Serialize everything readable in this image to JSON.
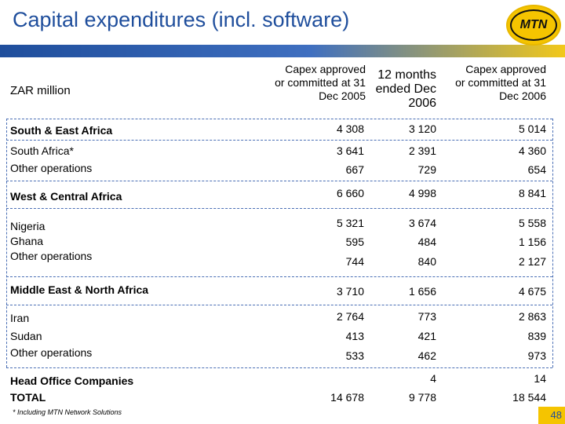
{
  "header": {
    "title": "Capital expenditures (incl. software)",
    "logo_text": "MTN"
  },
  "colors": {
    "title_blue": "#1f4e9c",
    "brand_yellow": "#f5c400",
    "dash_blue": "#4a6fb5"
  },
  "table": {
    "unit_label": "ZAR million",
    "columns": [
      "Capex approved or committed at 31 Dec 2005",
      "12 months ended Dec 2006",
      "Capex approved or committed at 31 Dec 2006"
    ],
    "rows": [
      {
        "label": "South & East Africa",
        "bold": true,
        "values": [
          "4 308",
          "3 120",
          "5 014"
        ]
      },
      {
        "label": "South Africa*",
        "bold": false,
        "values": [
          "3 641",
          "2 391",
          "4 360"
        ]
      },
      {
        "label": "Other operations",
        "bold": false,
        "values": [
          "667",
          "729",
          "654"
        ]
      },
      {
        "label": "West & Central Africa",
        "bold": true,
        "values": [
          "6 660",
          "4 998",
          "8 841"
        ]
      },
      {
        "label": "Nigeria",
        "bold": false,
        "values": [
          "5 321",
          "3 674",
          "5 558"
        ]
      },
      {
        "label": "Ghana",
        "bold": false,
        "values": [
          "595",
          "484",
          "1 156"
        ]
      },
      {
        "label": "Other operations",
        "bold": false,
        "values": [
          "744",
          "840",
          "2 127"
        ]
      },
      {
        "label": "Middle East & North Africa",
        "bold": true,
        "values": [
          "3 710",
          "1 656",
          "4 675"
        ]
      },
      {
        "label": "Iran",
        "bold": false,
        "values": [
          "2 764",
          "773",
          "2 863"
        ]
      },
      {
        "label": "Sudan",
        "bold": false,
        "values": [
          "413",
          "421",
          "839"
        ]
      },
      {
        "label": "Other operations",
        "bold": false,
        "values": [
          "533",
          "462",
          "973"
        ]
      },
      {
        "label": "Head Office Companies",
        "bold": true,
        "values": [
          "",
          "4",
          "14"
        ]
      },
      {
        "label": "TOTAL",
        "bold": true,
        "values": [
          "14 678",
          "9 778",
          "18 544"
        ]
      }
    ]
  },
  "footer": {
    "footnote": "*   Including MTN Network Solutions",
    "page_number": "48"
  }
}
